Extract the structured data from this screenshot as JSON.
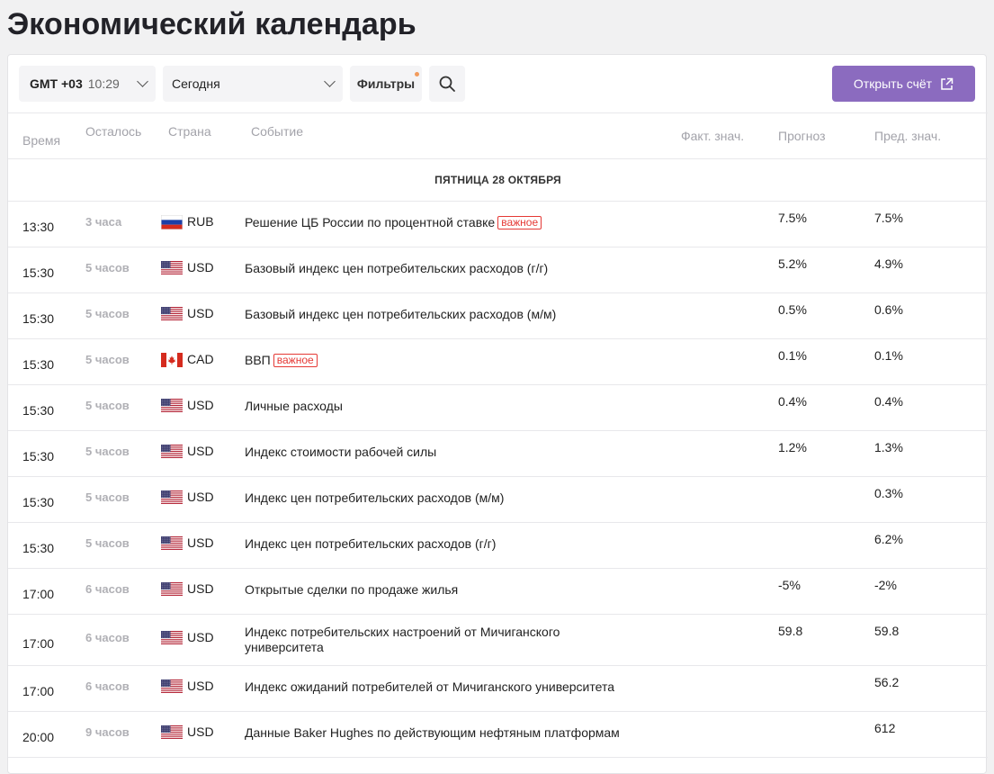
{
  "page": {
    "title": "Экономический календарь"
  },
  "toolbar": {
    "timezone": "GMT +03",
    "time": "10:29",
    "period": "Сегодня",
    "filters_label": "Фильтры",
    "open_account_label": "Открыть счёт"
  },
  "columns": {
    "time": "Время",
    "remaining": "Осталось",
    "country": "Страна",
    "event": "Событие",
    "actual": "Факт. знач.",
    "forecast": "Прогноз",
    "previous": "Пред. знач."
  },
  "date_label": "ПЯТНИЦА 28 ОКТЯБРЯ",
  "important_label": "важное",
  "colors": {
    "accent": "#8b6bbf",
    "important": "#e53935",
    "filter_dot": "#f29b5c"
  },
  "events": [
    {
      "time": "13:30",
      "remaining": "3 часа",
      "flag": "flag-ru-icon",
      "currency": "RUB",
      "event": "Решение ЦБ России по процентной ставке",
      "important": true,
      "forecast": "7.5%",
      "previous": "7.5%"
    },
    {
      "time": "15:30",
      "remaining": "5 часов",
      "flag": "flag-us-icon",
      "currency": "USD",
      "event": "Базовый индекс цен потребительских расходов (г/г)",
      "important": false,
      "forecast": "5.2%",
      "previous": "4.9%"
    },
    {
      "time": "15:30",
      "remaining": "5 часов",
      "flag": "flag-us-icon",
      "currency": "USD",
      "event": "Базовый индекс цен потребительских расходов (м/м)",
      "important": false,
      "forecast": "0.5%",
      "previous": "0.6%"
    },
    {
      "time": "15:30",
      "remaining": "5 часов",
      "flag": "flag-ca-icon",
      "currency": "CAD",
      "event": "ВВП",
      "important": true,
      "forecast": "0.1%",
      "previous": "0.1%"
    },
    {
      "time": "15:30",
      "remaining": "5 часов",
      "flag": "flag-us-icon",
      "currency": "USD",
      "event": "Личные расходы",
      "important": false,
      "forecast": "0.4%",
      "previous": "0.4%"
    },
    {
      "time": "15:30",
      "remaining": "5 часов",
      "flag": "flag-us-icon",
      "currency": "USD",
      "event": "Индекс стоимости рабочей силы",
      "important": false,
      "forecast": "1.2%",
      "previous": "1.3%"
    },
    {
      "time": "15:30",
      "remaining": "5 часов",
      "flag": "flag-us-icon",
      "currency": "USD",
      "event": "Индекс цен потребительских расходов (м/м)",
      "important": false,
      "forecast": "",
      "previous": "0.3%"
    },
    {
      "time": "15:30",
      "remaining": "5 часов",
      "flag": "flag-us-icon",
      "currency": "USD",
      "event": "Индекс цен потребительских расходов (г/г)",
      "important": false,
      "forecast": "",
      "previous": "6.2%"
    },
    {
      "time": "17:00",
      "remaining": "6 часов",
      "flag": "flag-us-icon",
      "currency": "USD",
      "event": "Открытые сделки по продаже жилья",
      "important": false,
      "forecast": "-5%",
      "previous": "-2%"
    },
    {
      "time": "17:00",
      "remaining": "6 часов",
      "flag": "flag-us-icon",
      "currency": "USD",
      "event": "Индекс потребительских настроений от Мичиганского университета",
      "important": false,
      "forecast": "59.8",
      "previous": "59.8"
    },
    {
      "time": "17:00",
      "remaining": "6 часов",
      "flag": "flag-us-icon",
      "currency": "USD",
      "event": "Индекс ожиданий потребителей от Мичиганского университета",
      "important": false,
      "forecast": "",
      "previous": "56.2"
    },
    {
      "time": "20:00",
      "remaining": "9 часов",
      "flag": "flag-us-icon",
      "currency": "USD",
      "event": "Данные Baker Hughes по действующим нефтяным платформам",
      "important": false,
      "forecast": "",
      "previous": "612"
    }
  ]
}
